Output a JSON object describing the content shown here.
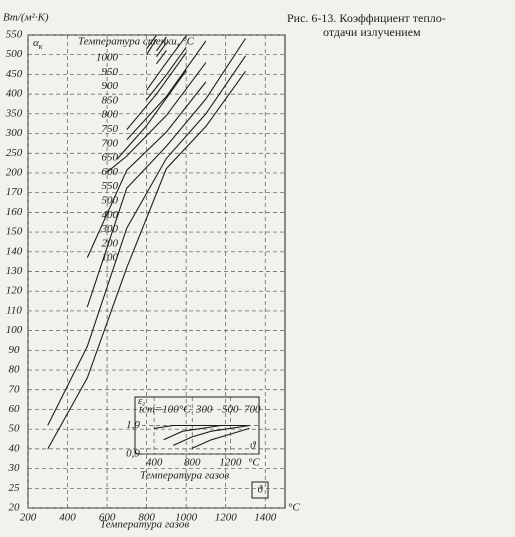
{
  "caption": [
    "Рис. 6-13. Коэффициент тепло-",
    "отдачи излучением"
  ],
  "chart_data": [
    {
      "type": "line",
      "y_unit": "Вт/(м²·К)",
      "y_symbol": "α",
      "y_symbol_sub": "к",
      "series_title": "Температура стенки, °C",
      "xlabel": "Температура газов",
      "x_unit": "°C",
      "symbol": "ϑ",
      "xlim": [
        200,
        1500
      ],
      "xticks": [
        200,
        400,
        600,
        800,
        1000,
        1200,
        1400
      ],
      "ylim": [
        20,
        550
      ],
      "yticks": [
        20,
        25,
        30,
        40,
        50,
        60,
        70,
        80,
        90,
        100,
        110,
        120,
        130,
        140,
        150,
        160,
        170,
        200,
        250,
        300,
        350,
        400,
        450,
        500,
        550
      ],
      "grid": true,
      "color": "#1e1e1e",
      "series": [
        {
          "name": "1000",
          "x": [
            800,
            850
          ],
          "values": [
            515,
            550
          ]
        },
        {
          "name": "950",
          "x": [
            800,
            850
          ],
          "values": [
            500,
            540
          ]
        },
        {
          "name": "900",
          "x": [
            850,
            900
          ],
          "values": [
            510,
            545
          ]
        },
        {
          "name": "850",
          "x": [
            850,
            900
          ],
          "values": [
            495,
            530
          ]
        },
        {
          "name": "800",
          "x": [
            850,
            900
          ],
          "values": [
            477,
            511
          ]
        },
        {
          "name": "750",
          "x": [
            800,
            900,
            1000
          ],
          "values": [
            410,
            480,
            548
          ]
        },
        {
          "name": "700",
          "x": [
            800,
            900,
            1000
          ],
          "values": [
            386,
            449,
            519
          ]
        },
        {
          "name": "650",
          "x": [
            700,
            850,
            1000
          ],
          "values": [
            310,
            400,
            505
          ]
        },
        {
          "name": "600",
          "x": [
            700,
            900,
            1100
          ],
          "values": [
            284,
            394,
            535
          ]
        },
        {
          "name": "550",
          "x": [
            650,
            800,
            1000
          ],
          "values": [
            235,
            320,
            460
          ]
        },
        {
          "name": "500",
          "x": [
            600,
            700,
            900,
            1100
          ],
          "values": [
            202,
            243,
            346,
            480
          ]
        },
        {
          "name": "400",
          "x": [
            500,
            700,
            900,
            1100
          ],
          "values": [
            137,
            207,
            304,
            431
          ]
        },
        {
          "name": "300",
          "x": [
            500,
            700,
            900,
            1100,
            1300
          ],
          "values": [
            112,
            177,
            268,
            388,
            541
          ]
        },
        {
          "name": "200",
          "x": [
            300,
            500,
            700,
            900,
            1100,
            1300
          ],
          "values": [
            52,
            92,
            152,
            237,
            350,
            497
          ]
        },
        {
          "name": "100",
          "x": [
            300,
            500,
            700,
            900,
            1100,
            1300
          ],
          "values": [
            40,
            76,
            132,
            211,
            318,
            458
          ]
        }
      ]
    },
    {
      "type": "line",
      "y_symbol": "ε",
      "y_symbol_sub": "г",
      "xlabel": "Температура газов",
      "x_unit": "°C",
      "symbol": "ϑ",
      "xlim": [
        200,
        1500
      ],
      "xticks": [
        400,
        800,
        1200
      ],
      "ylim": [
        0.9,
        1.1
      ],
      "yticks": [
        {
          "value": 0.9,
          "label": "0,9"
        },
        {
          "value": 1.0,
          "label": "1,0"
        }
      ],
      "grid": true,
      "color": "#1e1e1e",
      "series": [
        {
          "name": "tст=100°C",
          "x": [
            400,
            600,
            800,
            1000,
            1200,
            1400
          ],
          "values": [
            0.99,
            1.0,
            1.0,
            1.0,
            1.0,
            1.0
          ]
        },
        {
          "name": "300",
          "x": [
            500,
            700,
            900,
            1100,
            1300,
            1400
          ],
          "values": [
            0.95,
            0.98,
            0.99,
            1.0,
            1.0,
            1.0
          ]
        },
        {
          "name": "500",
          "x": [
            600,
            800,
            1000,
            1200,
            1400
          ],
          "values": [
            0.93,
            0.96,
            0.98,
            0.99,
            1.0
          ]
        },
        {
          "name": "700",
          "x": [
            800,
            1000,
            1200,
            1400
          ],
          "values": [
            0.92,
            0.95,
            0.97,
            0.99
          ]
        }
      ]
    }
  ]
}
